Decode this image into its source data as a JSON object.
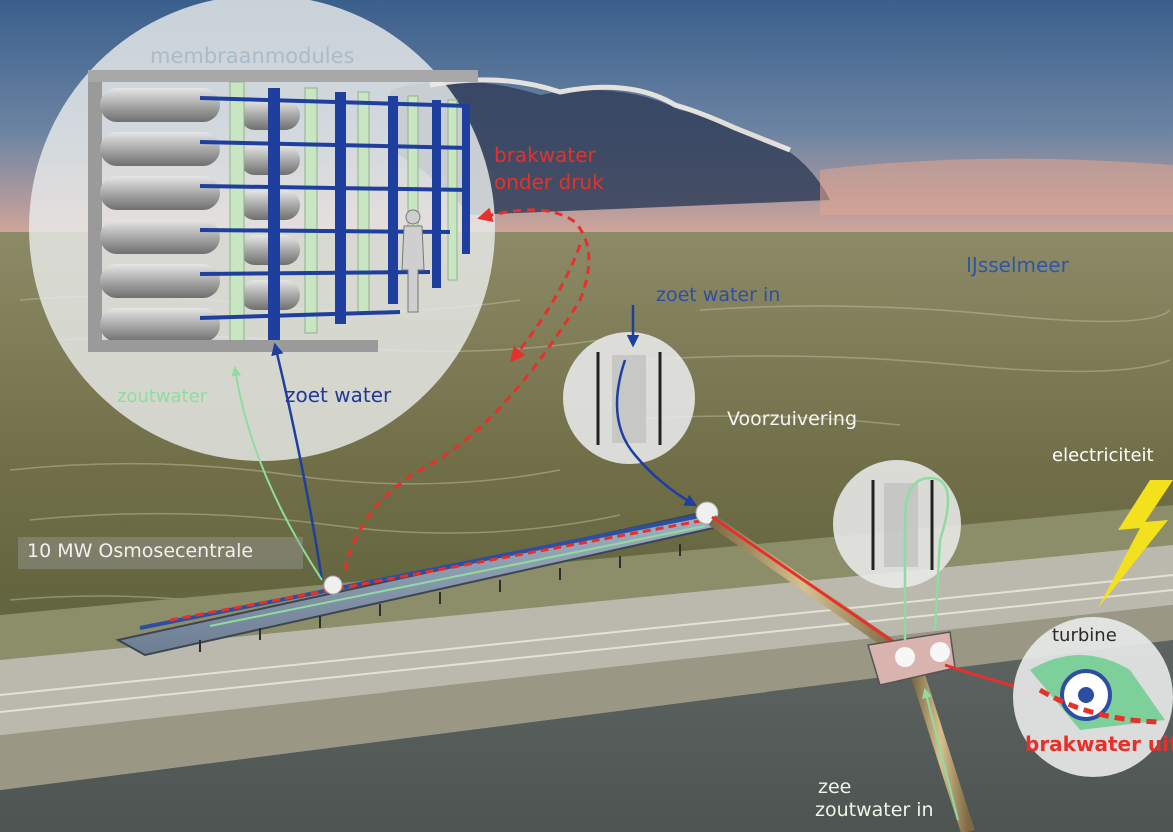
{
  "labels": {
    "membraanmodules": "membraanmodules",
    "brakwater_line1": "brakwater",
    "brakwater_line2": "onder druk",
    "ijsselmeer": "IJsselmeer",
    "zoet_water_in": "zoet water in",
    "zoutwater": "zoutwater",
    "zoet_water": "zoet water",
    "voorzuivering": "Voorzuivering",
    "electriciteit": "electriciteit",
    "osmosecentrale": "10 MW Osmosecentrale",
    "turbine": "turbine",
    "brakwater_uit": "brakwater uit",
    "zee": "zee",
    "zoutwater_in": "zoutwater in"
  },
  "colors": {
    "fresh_water": "#1f3f9e",
    "salt_water": "#8fdca0",
    "brackish_water": "#e8302a",
    "lightning": "#f2e11c"
  }
}
